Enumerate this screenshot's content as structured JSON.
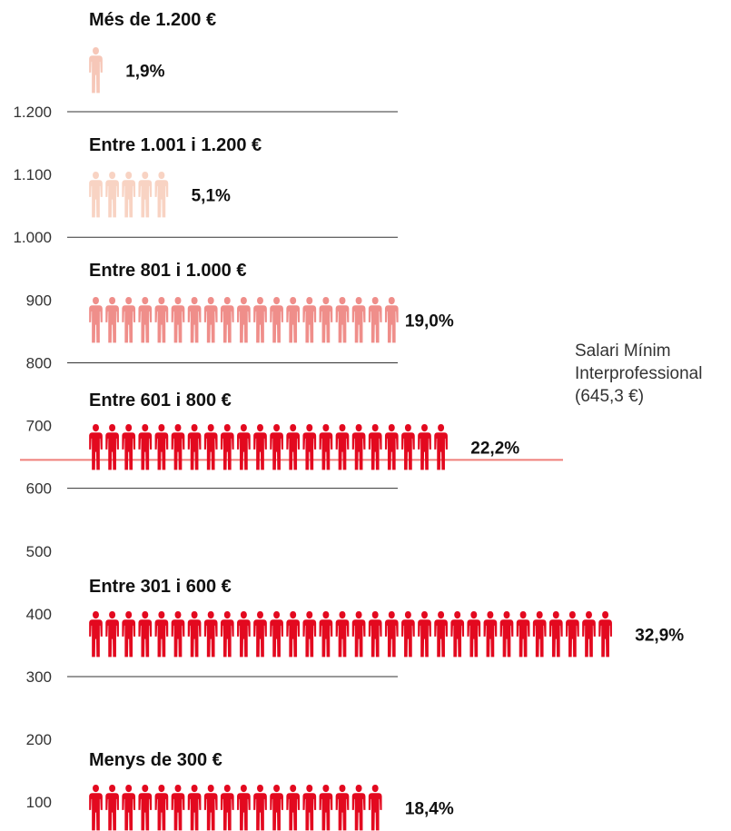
{
  "chart_data": {
    "type": "pictogram",
    "ylim": [
      0,
      1250
    ],
    "yticks": [
      {
        "value": 1200,
        "label": "1.200"
      },
      {
        "value": 1100,
        "label": "1.100"
      },
      {
        "value": 1000,
        "label": "1.000"
      },
      {
        "value": 900,
        "label": "900"
      },
      {
        "value": 800,
        "label": "800"
      },
      {
        "value": 700,
        "label": "700"
      },
      {
        "value": 600,
        "label": "600"
      },
      {
        "value": 500,
        "label": "500"
      },
      {
        "value": 400,
        "label": "400"
      },
      {
        "value": 300,
        "label": "300"
      },
      {
        "value": 200,
        "label": "200"
      },
      {
        "value": 100,
        "label": "100"
      }
    ],
    "gridlines": [
      1200,
      1000,
      800,
      600,
      300
    ],
    "categories": [
      {
        "label": "Més de 1.200 €",
        "value": 1.9,
        "value_label": "1,9%",
        "color": "#f6c7b8"
      },
      {
        "label": "Entre 1.001 i 1.200 €",
        "value": 5.1,
        "value_label": "5,1%",
        "color": "#f8d3c3"
      },
      {
        "label": "Entre 801 i 1.000 €",
        "value": 19.0,
        "value_label": "19,0%",
        "color": "#ef8e8a"
      },
      {
        "label": "Entre 601 i 800 €",
        "value": 22.2,
        "value_label": "22,2%",
        "color": "#e3091f"
      },
      {
        "label": "Entre 301 i 600 €",
        "value": 32.9,
        "value_label": "32,9%",
        "color": "#e3091f"
      },
      {
        "label": "Menys de 300 €",
        "value": 18.4,
        "value_label": "18,4%",
        "color": "#e3091f"
      }
    ],
    "reference_line": {
      "value": 645.3,
      "label_lines": [
        "Salari Mínim",
        "Interprofessional",
        "(645,3 €)"
      ],
      "color": "#ef7f7a"
    }
  }
}
